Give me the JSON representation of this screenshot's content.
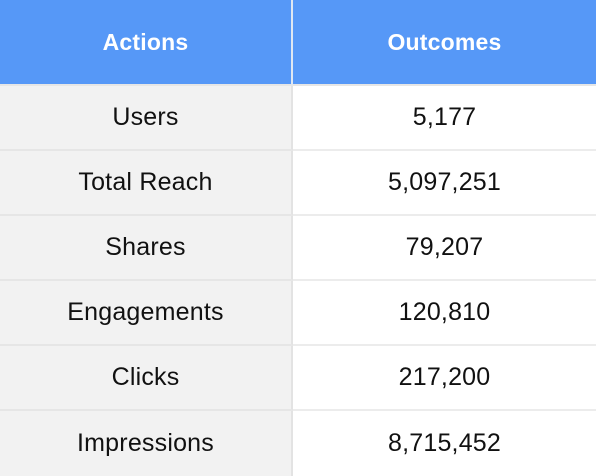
{
  "table": {
    "headers": [
      "Actions",
      "Outcomes"
    ],
    "rows": [
      {
        "action": "Users",
        "outcome": "5,177"
      },
      {
        "action": "Total Reach",
        "outcome": "5,097,251"
      },
      {
        "action": "Shares",
        "outcome": "79,207"
      },
      {
        "action": "Engagements",
        "outcome": "120,810"
      },
      {
        "action": "Clicks",
        "outcome": "217,200"
      },
      {
        "action": "Impressions",
        "outcome": "8,715,452"
      }
    ]
  },
  "colors": {
    "header_bg": "#5698f7",
    "header_text": "#ffffff",
    "action_col_bg": "#f2f2f2",
    "outcome_col_bg": "#ffffff",
    "body_text": "#111111"
  }
}
